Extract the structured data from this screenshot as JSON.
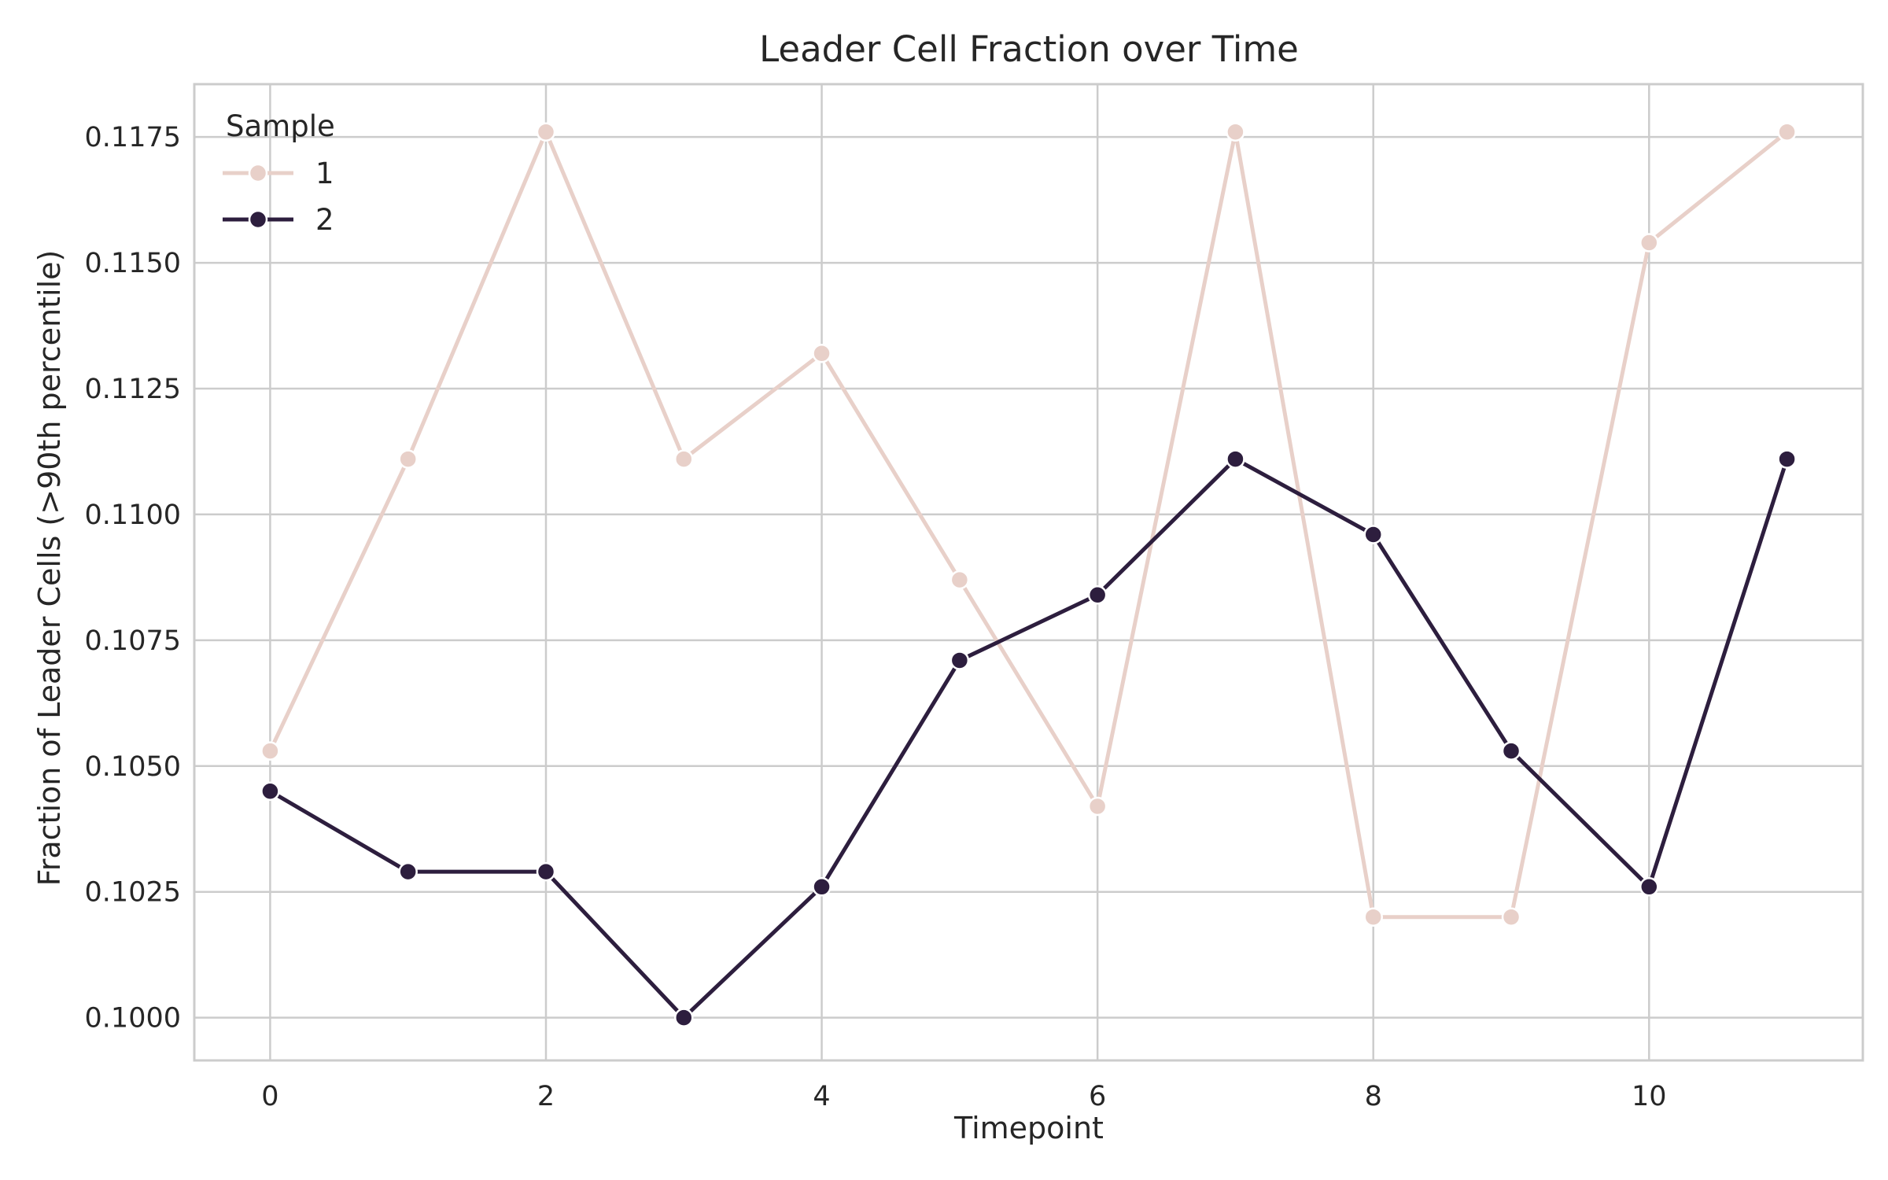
{
  "chart_data": {
    "type": "line",
    "title": "Leader Cell Fraction over Time",
    "xlabel": "Timepoint",
    "ylabel": "Fraction of Leader Cells (>90th percentile)",
    "x": [
      0,
      1,
      2,
      3,
      4,
      5,
      6,
      7,
      8,
      9,
      10,
      11
    ],
    "xlim": [
      -0.55,
      11.55
    ],
    "ylim": [
      0.09915,
      0.11855
    ],
    "xticks": [
      0,
      2,
      4,
      6,
      8,
      10
    ],
    "xtick_labels": [
      "0",
      "2",
      "4",
      "6",
      "8",
      "10"
    ],
    "yticks": [
      0.1,
      0.1025,
      0.105,
      0.1075,
      0.11,
      0.1125,
      0.115,
      0.1175
    ],
    "ytick_labels": [
      "0.1000",
      "0.1025",
      "0.1050",
      "0.1075",
      "0.1100",
      "0.1125",
      "0.1150",
      "0.1175"
    ],
    "grid": true,
    "legend": {
      "title": "Sample",
      "placement": "top-left"
    },
    "series": [
      {
        "name": "1",
        "color": "#e8d0c9",
        "values": [
          0.1053,
          0.1111,
          0.1176,
          0.1111,
          0.1132,
          0.1087,
          0.1042,
          0.1176,
          0.102,
          0.102,
          0.1154,
          0.1176
        ]
      },
      {
        "name": "2",
        "color": "#2d1e3e",
        "values": [
          0.1045,
          0.1029,
          0.1029,
          0.1,
          0.1026,
          0.1071,
          0.1084,
          0.1111,
          0.1096,
          0.1053,
          0.1026,
          0.1111
        ]
      }
    ]
  }
}
